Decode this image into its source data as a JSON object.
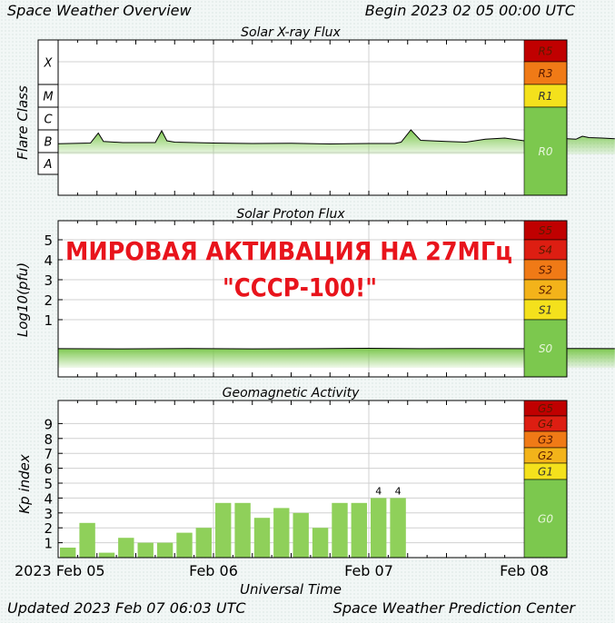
{
  "header": {
    "title": "Space Weather Overview",
    "begin": "Begin 2023 02 05 00:00 UTC"
  },
  "footer": {
    "updated": "Updated 2023 Feb 07 06:03 UTC",
    "center": "Space Weather Prediction Center"
  },
  "overlay": {
    "line1": "МИРОВАЯ АКТИВАЦИЯ НА 27МГц",
    "line2": "\"СССР-100!\"",
    "color": "#e8141c"
  },
  "colors": {
    "plot_bg": "#ffffff",
    "data_fill": "#8ccf5a",
    "data_line": "#000000",
    "kp_bar": "#8fd05a",
    "scale_green": "#7cc84e",
    "scale_yellow": "#f4e11c",
    "scale_orange_light": "#f3b31a",
    "scale_orange": "#f07a16",
    "scale_red": "#dd1e12",
    "scale_dark_red": "#c00000"
  },
  "chart_data": [
    {
      "type": "line",
      "title": "Solar X-ray Flux",
      "ylabel": "Flare Class",
      "y_categories": [
        "A",
        "B",
        "C",
        "M",
        "X"
      ],
      "x_range": [
        "2023-02-05 00:00",
        "2023-02-08 00:00"
      ],
      "x_ticks": [
        "2023 Feb 05",
        "Feb 06",
        "Feb 07",
        "Feb 08"
      ],
      "series": [
        {
          "x_hours": [
            0,
            5,
            6.2,
            7,
            10,
            15,
            16,
            16.8,
            18,
            24,
            30,
            36,
            42,
            48,
            52,
            53,
            54.5,
            56,
            60,
            63,
            66,
            69,
            72,
            75,
            78,
            80,
            81,
            82,
            84,
            86
          ],
          "flare_level": [
            1.35,
            1.38,
            1.82,
            1.45,
            1.4,
            1.4,
            1.92,
            1.48,
            1.42,
            1.38,
            1.36,
            1.37,
            1.34,
            1.36,
            1.36,
            1.42,
            1.96,
            1.5,
            1.45,
            1.42,
            1.55,
            1.6,
            1.48,
            1.55,
            1.58,
            1.55,
            1.68,
            1.62,
            1.6,
            1.57
          ]
        }
      ],
      "scale_levels": [
        {
          "label": "R5",
          "color_key": "scale_dark_red"
        },
        {
          "label": "R3",
          "color_key": "scale_orange"
        },
        {
          "label": "R1",
          "color_key": "scale_yellow"
        },
        {
          "label": "R0",
          "color_key": "scale_green"
        }
      ]
    },
    {
      "type": "line",
      "title": "Solar Proton Flux",
      "ylabel": "Log10(pfu)",
      "y_ticks": [
        1,
        2,
        3,
        4,
        5
      ],
      "x_range": [
        "2023-02-05 00:00",
        "2023-02-08 00:00"
      ],
      "series": [
        {
          "x_hours": [
            0,
            10,
            20,
            30,
            40,
            48,
            56,
            64,
            72,
            80,
            86
          ],
          "log_pfu": [
            -0.45,
            -0.46,
            -0.44,
            -0.46,
            -0.45,
            -0.43,
            -0.45,
            -0.44,
            -0.45,
            -0.44,
            -0.45
          ]
        }
      ],
      "scale_levels": [
        {
          "label": "S5",
          "color_key": "scale_dark_red"
        },
        {
          "label": "S4",
          "color_key": "scale_red"
        },
        {
          "label": "S3",
          "color_key": "scale_orange"
        },
        {
          "label": "S2",
          "color_key": "scale_orange_light"
        },
        {
          "label": "S1",
          "color_key": "scale_yellow"
        },
        {
          "label": "S0",
          "color_key": "scale_green"
        }
      ]
    },
    {
      "type": "bar",
      "title": "Geomagnetic Activity",
      "ylabel": "Kp index",
      "xlabel": "Universal Time",
      "y_ticks": [
        1,
        2,
        3,
        4,
        5,
        6,
        7,
        8,
        9
      ],
      "x_range": [
        "2023-02-05 00:00",
        "2023-02-08 00:00"
      ],
      "x_ticks": [
        "2023 Feb 05",
        "Feb 06",
        "Feb 07",
        "Feb 08"
      ],
      "bar_hours": [
        0,
        3,
        6,
        9,
        12,
        15,
        18,
        21,
        24,
        27,
        30,
        33,
        36,
        39,
        42,
        45,
        48,
        51
      ],
      "kp": [
        0.67,
        2.33,
        0.33,
        1.33,
        1.0,
        1.0,
        1.67,
        2.0,
        3.67,
        3.67,
        2.67,
        3.33,
        3.0,
        2.0,
        3.67,
        3.67,
        4.0,
        4.0
      ],
      "data_labels": [
        {
          "index": 16,
          "text": "4"
        },
        {
          "index": 17,
          "text": "4"
        }
      ],
      "scale_levels": [
        {
          "label": "G5",
          "color_key": "scale_dark_red"
        },
        {
          "label": "G4",
          "color_key": "scale_red"
        },
        {
          "label": "G3",
          "color_key": "scale_orange"
        },
        {
          "label": "G2",
          "color_key": "scale_orange_light"
        },
        {
          "label": "G1",
          "color_key": "scale_yellow"
        },
        {
          "label": "G0",
          "color_key": "scale_green"
        }
      ]
    }
  ]
}
